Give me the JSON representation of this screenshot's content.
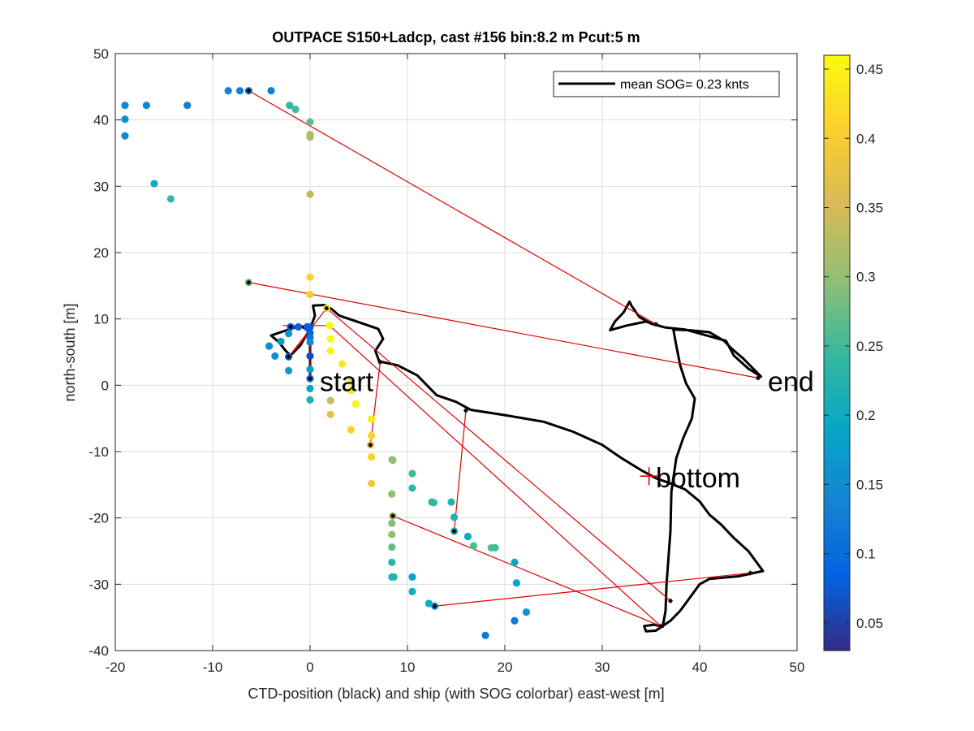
{
  "chart_data": {
    "type": "scatter",
    "title": "OUTPACE S150+Ladcp, cast #156 bin:8.2 m  Pcut:5 m",
    "xlabel": "CTD-position (black) and ship (with SOG colorbar) east-west [m]",
    "ylabel": "north-south [m]",
    "xlim": [
      -20,
      50
    ],
    "ylim": [
      -40,
      50
    ],
    "xticks": [
      "-20",
      "-10",
      "0",
      "10",
      "20",
      "30",
      "40",
      "50"
    ],
    "yticks": [
      "50",
      "40",
      "30",
      "20",
      "10",
      "0",
      "-10",
      "-20",
      "-30",
      "-40"
    ],
    "grid": true,
    "legend": {
      "position": "top-right",
      "entries": [
        "mean SOG=  0.23 knts"
      ]
    },
    "colorbar": {
      "min": 0.03,
      "max": 0.46,
      "ticks": [
        "0.45",
        "0.4",
        "0.35",
        "0.3",
        "0.25",
        "0.2",
        "0.15",
        "0.1",
        "0.05"
      ],
      "tick_values": [
        0.45,
        0.4,
        0.35,
        0.3,
        0.25,
        0.2,
        0.15,
        0.1,
        0.05
      ],
      "colormap": "parula"
    },
    "annotations": [
      {
        "text": "start",
        "x": 1.0,
        "y": 0.6
      },
      {
        "text": "end",
        "x": 47.0,
        "y": 0.6
      },
      {
        "text": "bottom",
        "x": 35.5,
        "y": -13.9
      }
    ],
    "bottom_marker": {
      "x": 34.8,
      "y": -13.7
    },
    "ctd_track": [
      [
        0,
        1
      ],
      [
        0,
        4
      ],
      [
        0,
        8
      ],
      [
        -1,
        9
      ],
      [
        -2,
        8.5
      ],
      [
        -3,
        8
      ],
      [
        -4,
        7.5
      ],
      [
        -3.2,
        6.5
      ],
      [
        -2.5,
        5.2
      ],
      [
        -2,
        4.5
      ],
      [
        -1,
        6
      ],
      [
        0,
        8.5
      ],
      [
        0.5,
        10.5
      ],
      [
        0.3,
        12
      ],
      [
        1.5,
        12.1
      ],
      [
        2.2,
        11.5
      ],
      [
        3,
        10.5
      ],
      [
        5,
        9.5
      ],
      [
        7,
        8.5
      ],
      [
        7.5,
        7
      ],
      [
        6.7,
        5.2
      ],
      [
        7.1,
        3.6
      ],
      [
        9,
        3
      ],
      [
        11,
        1.5
      ],
      [
        13,
        -1.5
      ],
      [
        15,
        -2.5
      ],
      [
        16.5,
        -3.7
      ],
      [
        20,
        -4.5
      ],
      [
        24,
        -5.5
      ],
      [
        27,
        -7
      ],
      [
        30,
        -9
      ],
      [
        32,
        -11
      ],
      [
        34,
        -12.8
      ],
      [
        35.5,
        -14
      ],
      [
        37,
        -14.8
      ],
      [
        38.5,
        -15.7
      ],
      [
        40,
        -17.5
      ],
      [
        41,
        -19.5
      ],
      [
        42.2,
        -21
      ],
      [
        43.5,
        -23
      ],
      [
        45,
        -25
      ],
      [
        46.5,
        -28
      ],
      [
        44,
        -28.8
      ],
      [
        41,
        -29.2
      ],
      [
        40,
        -30
      ],
      [
        39,
        -32
      ],
      [
        38,
        -34
      ],
      [
        37,
        -35.5
      ],
      [
        35.5,
        -37
      ],
      [
        34.5,
        -37.1
      ],
      [
        34.3,
        -36.3
      ],
      [
        35.3,
        -36.1
      ],
      [
        36.2,
        -36.4
      ],
      [
        36.5,
        -34
      ],
      [
        36.6,
        -30
      ],
      [
        36.8,
        -26
      ],
      [
        37,
        -22
      ],
      [
        37.1,
        -16
      ],
      [
        37.6,
        -11
      ],
      [
        38.3,
        -8
      ],
      [
        39.2,
        -5
      ],
      [
        39.5,
        -2
      ],
      [
        38.6,
        0.3
      ],
      [
        38,
        3
      ],
      [
        37.6,
        6
      ],
      [
        37.3,
        8.4
      ],
      [
        39,
        8.3
      ],
      [
        41,
        8
      ],
      [
        42.5,
        6.7
      ],
      [
        43.3,
        5.5
      ],
      [
        44.5,
        4
      ],
      [
        45.5,
        2.5
      ],
      [
        46.3,
        1.3
      ],
      [
        45,
        2.5
      ],
      [
        43.5,
        4.5
      ],
      [
        42.7,
        6.7
      ],
      [
        40.5,
        7.6
      ],
      [
        38.5,
        8.4
      ],
      [
        36.5,
        8.7
      ],
      [
        35,
        9.3
      ],
      [
        33.8,
        10.3
      ],
      [
        33,
        12
      ],
      [
        32.8,
        12.6
      ],
      [
        32.2,
        11
      ],
      [
        31.3,
        9.6
      ],
      [
        30.8,
        8.3
      ],
      [
        32.5,
        9
      ],
      [
        34.5,
        9.6
      ],
      [
        36,
        8.9
      ]
    ],
    "ctd_sample_points": [
      [
        0,
        1.0
      ],
      [
        -2.2,
        4.3
      ],
      [
        -2.0,
        8.8
      ],
      [
        1.7,
        11.6
      ],
      [
        7.2,
        3.5
      ],
      [
        6.2,
        -9.0
      ],
      [
        14.8,
        -22.0
      ],
      [
        8.5,
        -19.7
      ],
      [
        12.8,
        -33.3
      ],
      [
        45.2,
        -28.3
      ],
      [
        37.0,
        -32.5
      ],
      [
        36.0,
        -36.3
      ],
      [
        16.0,
        -3.8
      ],
      [
        -6.3,
        15.5
      ],
      [
        -6.3,
        44.4
      ],
      [
        35.5,
        9.2
      ],
      [
        46.0,
        1.1
      ]
    ],
    "red_connector_lines": [
      [
        [
          -6.3,
          44.4
        ],
        [
          35.5,
          9.2
        ]
      ],
      [
        [
          -6.3,
          15.5
        ],
        [
          46.0,
          1.1
        ]
      ],
      [
        [
          1.7,
          11.6
        ],
        [
          37.0,
          -32.5
        ]
      ],
      [
        [
          2.0,
          9.0
        ],
        [
          36.0,
          -36.3
        ]
      ],
      [
        [
          8.5,
          -19.7
        ],
        [
          36.0,
          -36.3
        ]
      ],
      [
        [
          12.8,
          -33.3
        ],
        [
          45.2,
          -28.3
        ]
      ],
      [
        [
          7.2,
          3.5
        ],
        [
          6.2,
          -9.0
        ]
      ],
      [
        [
          16.0,
          -3.8
        ],
        [
          14.8,
          -22.0
        ]
      ],
      [
        [
          -2.2,
          4.3
        ],
        [
          1.7,
          11.6
        ]
      ],
      [
        [
          -2.8,
          9.0
        ],
        [
          2.0,
          9.0
        ]
      ],
      [
        [
          -2.2,
          4.3
        ],
        [
          0.0,
          8.0
        ]
      ],
      [
        [
          0,
          1.0
        ],
        [
          0,
          8.0
        ]
      ]
    ],
    "ship_points": [
      {
        "x": -19,
        "y": 42.2,
        "sog": 0.14
      },
      {
        "x": -19,
        "y": 40.1,
        "sog": 0.15
      },
      {
        "x": -19,
        "y": 37.6,
        "sog": 0.14
      },
      {
        "x": -16.8,
        "y": 42.2,
        "sog": 0.14
      },
      {
        "x": -12.6,
        "y": 42.2,
        "sog": 0.13
      },
      {
        "x": -8.4,
        "y": 44.4,
        "sog": 0.13
      },
      {
        "x": -7.2,
        "y": 44.4,
        "sog": 0.13
      },
      {
        "x": -6.3,
        "y": 44.4,
        "sog": 0.12
      },
      {
        "x": -4.0,
        "y": 44.4,
        "sog": 0.13
      },
      {
        "x": -2.1,
        "y": 42.2,
        "sog": 0.24
      },
      {
        "x": -1.5,
        "y": 41.6,
        "sog": 0.25
      },
      {
        "x": 0,
        "y": 39.7,
        "sog": 0.27
      },
      {
        "x": 0,
        "y": 37.8,
        "sog": 0.31
      },
      {
        "x": 0,
        "y": 37.4,
        "sog": 0.32
      },
      {
        "x": 0,
        "y": 28.8,
        "sog": 0.33
      },
      {
        "x": -16,
        "y": 30.4,
        "sog": 0.2
      },
      {
        "x": -14.3,
        "y": 28.1,
        "sog": 0.24
      },
      {
        "x": -6.3,
        "y": 15.5,
        "sog": 0.28
      },
      {
        "x": 0,
        "y": 16.3,
        "sog": 0.41
      },
      {
        "x": 0,
        "y": 13.7,
        "sog": 0.4
      },
      {
        "x": 1.7,
        "y": 11.6,
        "sog": 0.45
      },
      {
        "x": 0,
        "y": 8.8,
        "sog": 0.07
      },
      {
        "x": -0.3,
        "y": 8.8,
        "sog": 0.08
      },
      {
        "x": -1.2,
        "y": 8.8,
        "sog": 0.09
      },
      {
        "x": -2.0,
        "y": 8.8,
        "sog": 0.08
      },
      {
        "x": -2.2,
        "y": 7.8,
        "sog": 0.16
      },
      {
        "x": 0,
        "y": 7.9,
        "sog": 0.08
      },
      {
        "x": 0,
        "y": 7.2,
        "sog": 0.11
      },
      {
        "x": 0,
        "y": 6.5,
        "sog": 0.14
      },
      {
        "x": -3.0,
        "y": 6.6,
        "sog": 0.17
      },
      {
        "x": -4.2,
        "y": 5.9,
        "sog": 0.15
      },
      {
        "x": -3.6,
        "y": 4.4,
        "sog": 0.16
      },
      {
        "x": -2.2,
        "y": 4.3,
        "sog": 0.08
      },
      {
        "x": 0,
        "y": 4.4,
        "sog": 0.06
      },
      {
        "x": -2.2,
        "y": 2.2,
        "sog": 0.17
      },
      {
        "x": 0,
        "y": 2.4,
        "sog": 0.17
      },
      {
        "x": 0,
        "y": 1.0,
        "sog": 0.1
      },
      {
        "x": 0,
        "y": -0.5,
        "sog": 0.19
      },
      {
        "x": 0,
        "y": -2.2,
        "sog": 0.22
      },
      {
        "x": 2.0,
        "y": 9.0,
        "sog": 0.46
      },
      {
        "x": 2.1,
        "y": 7.0,
        "sog": 0.46
      },
      {
        "x": 2.1,
        "y": 5.2,
        "sog": 0.45
      },
      {
        "x": 3.3,
        "y": 3.2,
        "sog": 0.44
      },
      {
        "x": 4.2,
        "y": 0.6,
        "sog": 0.45
      },
      {
        "x": 4.2,
        "y": -0.8,
        "sog": 0.44
      },
      {
        "x": 4.7,
        "y": -2.8,
        "sog": 0.45
      },
      {
        "x": 2.1,
        "y": -2.3,
        "sog": 0.34
      },
      {
        "x": 2.1,
        "y": -4.4,
        "sog": 0.37
      },
      {
        "x": 4.2,
        "y": -6.7,
        "sog": 0.41
      },
      {
        "x": 6.3,
        "y": -5.1,
        "sog": 0.44
      },
      {
        "x": 6.3,
        "y": -7.6,
        "sog": 0.41
      },
      {
        "x": 6.2,
        "y": -9.0,
        "sog": 0.4
      },
      {
        "x": 6.3,
        "y": -10.8,
        "sog": 0.41
      },
      {
        "x": 6.3,
        "y": -14.8,
        "sog": 0.39
      },
      {
        "x": 8.4,
        "y": -11.2,
        "sog": 0.33
      },
      {
        "x": 8.5,
        "y": -11.3,
        "sog": 0.3
      },
      {
        "x": 8.4,
        "y": -16.4,
        "sog": 0.3
      },
      {
        "x": 8.5,
        "y": -19.7,
        "sog": 0.31
      },
      {
        "x": 8.4,
        "y": -20.8,
        "sog": 0.29
      },
      {
        "x": 8.4,
        "y": -22.5,
        "sog": 0.3
      },
      {
        "x": 8.4,
        "y": -24.4,
        "sog": 0.27
      },
      {
        "x": 8.4,
        "y": -26.7,
        "sog": 0.23
      },
      {
        "x": 8.4,
        "y": -28.9,
        "sog": 0.22
      },
      {
        "x": 8.6,
        "y": -28.9,
        "sog": 0.23
      },
      {
        "x": 10.5,
        "y": -13.3,
        "sog": 0.25
      },
      {
        "x": 10.5,
        "y": -15.5,
        "sog": 0.24
      },
      {
        "x": 12.5,
        "y": -17.6,
        "sog": 0.24
      },
      {
        "x": 12.7,
        "y": -17.7,
        "sog": 0.24
      },
      {
        "x": 14.5,
        "y": -17.6,
        "sog": 0.22
      },
      {
        "x": 14.8,
        "y": -19.9,
        "sog": 0.22
      },
      {
        "x": 14.8,
        "y": -22.0,
        "sog": 0.22
      },
      {
        "x": 16.2,
        "y": -22.8,
        "sog": 0.2
      },
      {
        "x": 16.8,
        "y": -24.2,
        "sog": 0.26
      },
      {
        "x": 18.6,
        "y": -24.5,
        "sog": 0.26
      },
      {
        "x": 19.0,
        "y": -24.5,
        "sog": 0.25
      },
      {
        "x": 10.5,
        "y": -28.9,
        "sog": 0.19
      },
      {
        "x": 10.5,
        "y": -31.1,
        "sog": 0.21
      },
      {
        "x": 12.2,
        "y": -32.9,
        "sog": 0.2
      },
      {
        "x": 12.8,
        "y": -33.3,
        "sog": 0.17
      },
      {
        "x": 21.0,
        "y": -26.7,
        "sog": 0.19
      },
      {
        "x": 21.2,
        "y": -29.8,
        "sog": 0.19
      },
      {
        "x": 21.0,
        "y": -35.5,
        "sog": 0.12
      },
      {
        "x": 22.2,
        "y": -34.2,
        "sog": 0.16
      },
      {
        "x": 18.0,
        "y": -37.7,
        "sog": 0.12
      }
    ]
  }
}
